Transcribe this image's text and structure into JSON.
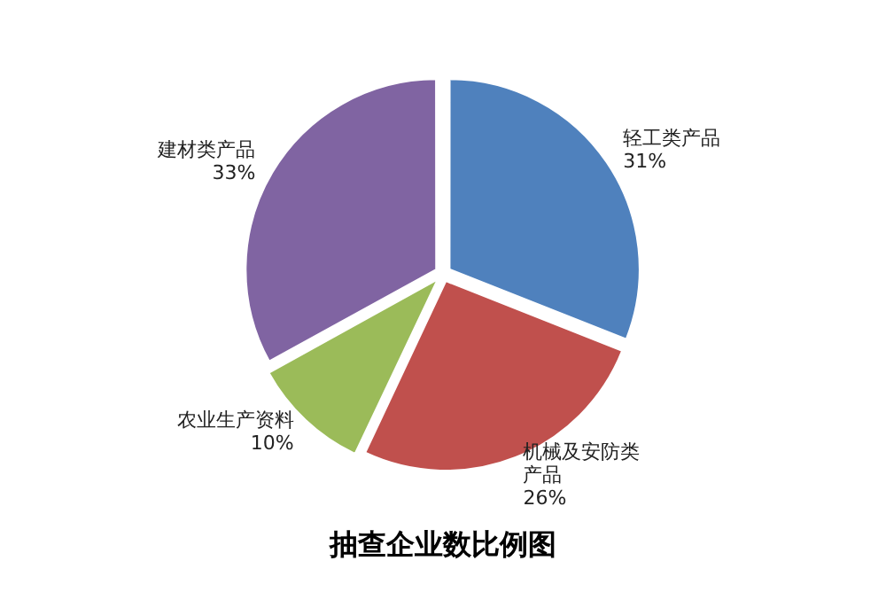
{
  "chart_data": {
    "type": "pie",
    "title": "抽查企业数比例图",
    "categories": [
      "轻工类产品",
      "机械及安防类产品",
      "农业生产资料",
      "建材类产品"
    ],
    "values": [
      31,
      26,
      10,
      33
    ],
    "value_labels": [
      "31%",
      "26%",
      "10%",
      "33%"
    ],
    "colors": [
      "#4f81bd",
      "#c0504d",
      "#9bbb59",
      "#8064a2"
    ],
    "legend": false
  }
}
